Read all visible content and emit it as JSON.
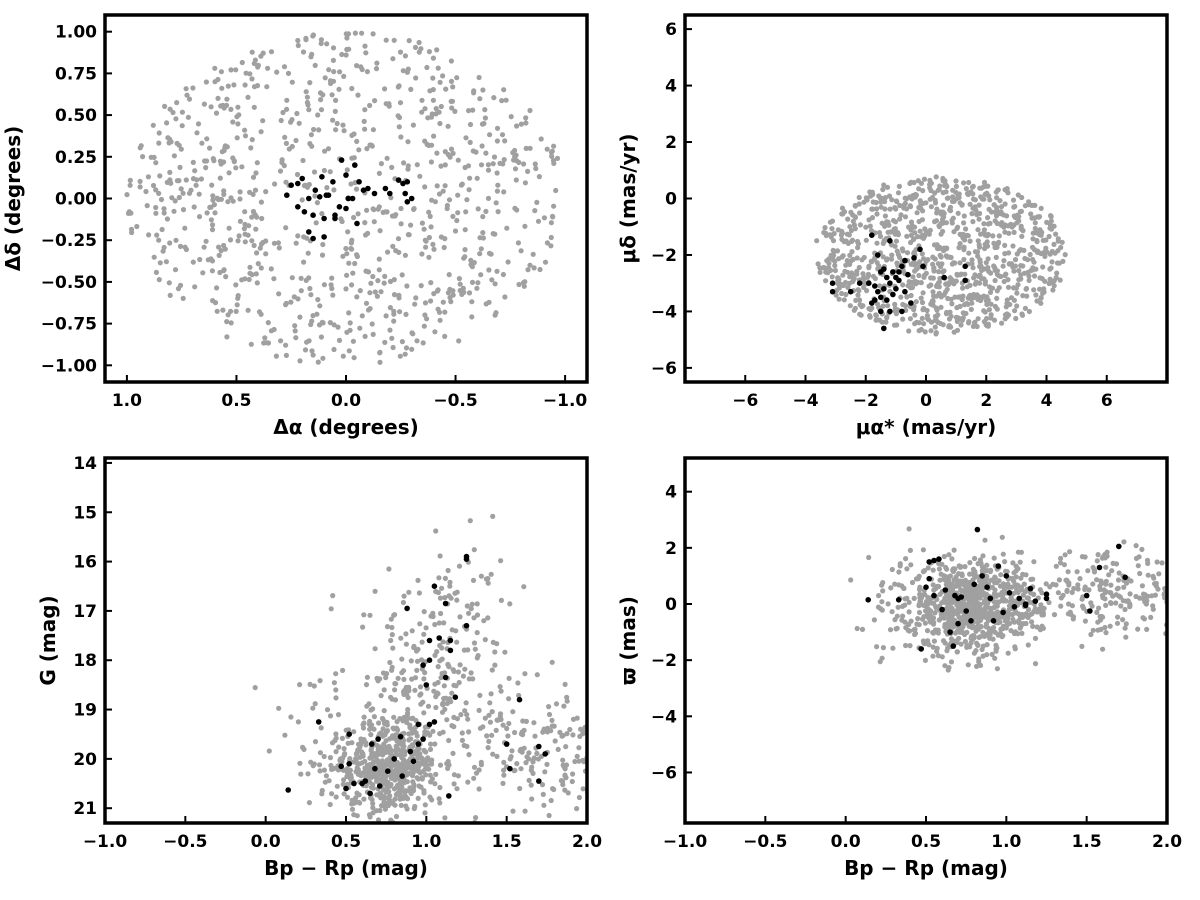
{
  "chart_data": [
    {
      "type": "scatter",
      "id": "sky",
      "xlabel": "Δα (degrees)",
      "ylabel": "Δδ (degrees)",
      "xlim": [
        1.1,
        -1.1
      ],
      "ylim": [
        -1.1,
        1.1
      ],
      "x_reversed": true,
      "xticks": [
        1.0,
        0.5,
        0.0,
        -0.5,
        -1.0
      ],
      "xtick_labels": [
        "1.0",
        "0.5",
        "0.0",
        "−0.5",
        "−1.0"
      ],
      "yticks": [
        -1.0,
        -0.75,
        -0.5,
        -0.25,
        0.0,
        0.25,
        0.5,
        0.75,
        1.0
      ],
      "ytick_labels": [
        "−1.00",
        "−0.75",
        "−0.50",
        "−0.25",
        "0.00",
        "0.25",
        "0.50",
        "0.75",
        "1.00"
      ],
      "grid": false,
      "series": [
        {
          "color": "#a0a0a0",
          "distribution": {
            "kind": "disk",
            "center": [
              0,
              0
            ],
            "radius": [
              1.0,
              1.0
            ],
            "n": 900
          }
        },
        {
          "color": "#000000",
          "points": [
            [
              0.02,
              0.23
            ],
            [
              -0.04,
              0.2
            ],
            [
              0.0,
              0.14
            ],
            [
              0.11,
              0.13
            ],
            [
              0.06,
              0.1
            ],
            [
              -0.06,
              0.1
            ],
            [
              -0.08,
              0.05
            ],
            [
              0.14,
              0.05
            ],
            [
              0.2,
              0.12
            ],
            [
              0.22,
              0.09
            ],
            [
              0.25,
              0.08
            ],
            [
              0.27,
              0.02
            ],
            [
              0.22,
              -0.05
            ],
            [
              0.19,
              -0.08
            ],
            [
              0.15,
              -0.1
            ],
            [
              0.1,
              -0.12
            ],
            [
              0.05,
              -0.1
            ],
            [
              0.0,
              -0.06
            ],
            [
              -0.03,
              0.0
            ],
            [
              0.17,
              0.0
            ],
            [
              0.12,
              0.01
            ],
            [
              0.09,
              0.02
            ],
            [
              0.17,
              -0.2
            ],
            [
              0.15,
              -0.24
            ],
            [
              0.1,
              -0.23
            ],
            [
              0.05,
              -0.12
            ],
            [
              0.03,
              -0.05
            ],
            [
              -0.05,
              -0.15
            ],
            [
              -0.1,
              0.06
            ],
            [
              -0.13,
              0.03
            ],
            [
              -0.2,
              0.03
            ],
            [
              -0.24,
              0.11
            ],
            [
              -0.26,
              0.09
            ],
            [
              -0.27,
              0.03
            ],
            [
              -0.28,
              -0.02
            ],
            [
              -0.3,
              0.0
            ],
            [
              -0.18,
              0.06
            ],
            [
              -0.28,
              0.1
            ],
            [
              0.08,
              0.02
            ],
            [
              -0.01,
              0.0
            ]
          ]
        }
      ]
    },
    {
      "type": "scatter",
      "id": "pm",
      "xlabel": "μα* (mas/yr)",
      "ylabel": "μδ (mas/yr)",
      "xlim": [
        -8,
        8
      ],
      "ylim": [
        -6.5,
        6.5
      ],
      "xticks": [
        -6,
        -4,
        -2,
        0,
        2,
        4,
        6
      ],
      "xtick_labels": [
        "−6",
        "−4",
        "−2",
        "0",
        "2",
        "4",
        "6"
      ],
      "yticks": [
        -6,
        -4,
        -2,
        0,
        2,
        4,
        6
      ],
      "ytick_labels": [
        "−6",
        "−4",
        "−2",
        "0",
        "2",
        "4",
        "6"
      ],
      "grid": false,
      "series": [
        {
          "color": "#a0a0a0",
          "distribution": {
            "kind": "disk",
            "center": [
              0.5,
              -2.0
            ],
            "radius": [
              4.2,
              2.8
            ],
            "n": 1000
          }
        },
        {
          "color": "#000000",
          "points": [
            [
              -1.5,
              -3.5
            ],
            [
              -1.4,
              -3.2
            ],
            [
              -1.6,
              -3.3
            ],
            [
              -1.3,
              -3.6
            ],
            [
              -1.2,
              -3.0
            ],
            [
              -1.0,
              -2.8
            ],
            [
              -0.9,
              -2.6
            ],
            [
              -0.8,
              -2.4
            ],
            [
              -0.7,
              -2.2
            ],
            [
              -0.9,
              -2.9
            ],
            [
              -1.1,
              -3.4
            ],
            [
              -1.7,
              -3.1
            ],
            [
              -1.5,
              -2.6
            ],
            [
              -1.6,
              -2.0
            ],
            [
              -1.8,
              -1.3
            ],
            [
              -1.2,
              -1.5
            ],
            [
              -1.4,
              -2.5
            ],
            [
              -0.6,
              -2.7
            ],
            [
              -0.5,
              -3.7
            ],
            [
              -0.8,
              -4.0
            ],
            [
              -1.4,
              -4.6
            ],
            [
              -1.5,
              -4.0
            ],
            [
              -1.2,
              -4.0
            ],
            [
              -2.2,
              -3.0
            ],
            [
              -2.5,
              -3.3
            ],
            [
              -3.1,
              -3.0
            ],
            [
              -3.1,
              -3.3
            ],
            [
              -0.2,
              -1.8
            ],
            [
              -0.1,
              -2.4
            ],
            [
              0.6,
              -2.8
            ],
            [
              1.3,
              -2.4
            ],
            [
              1.3,
              -2.9
            ],
            [
              -1.0,
              -3.2
            ],
            [
              -1.8,
              -3.7
            ],
            [
              -1.3,
              -2.8
            ],
            [
              -1.7,
              -3.6
            ],
            [
              -1.1,
              -2.6
            ],
            [
              -0.7,
              -3.3
            ],
            [
              -1.9,
              -3.0
            ],
            [
              -0.4,
              -2.1
            ]
          ]
        }
      ]
    },
    {
      "type": "scatter",
      "id": "cmd",
      "xlabel": "Bp − Rp (mag)",
      "ylabel": "G (mag)",
      "xlim": [
        -1.0,
        2.0
      ],
      "ylim": [
        21.3,
        13.9
      ],
      "y_reversed": true,
      "xticks": [
        -1.0,
        -0.5,
        0.0,
        0.5,
        1.0,
        1.5,
        2.0
      ],
      "xtick_labels": [
        "−1.0",
        "−0.5",
        "0.0",
        "0.5",
        "1.0",
        "1.5",
        "2.0"
      ],
      "yticks": [
        14,
        15,
        16,
        17,
        18,
        19,
        20,
        21
      ],
      "ytick_labels": [
        "14",
        "15",
        "16",
        "17",
        "18",
        "19",
        "20",
        "21"
      ],
      "grid": false,
      "series": [
        {
          "color": "#a0a0a0",
          "distribution": {
            "kind": "clumps",
            "clumps": [
              {
                "center": [
                  0.75,
                  20.2
                ],
                "spread": [
                  0.17,
                  0.45
                ],
                "n": 550
              },
              {
                "center": [
                  1.0,
                  18.8
                ],
                "spread": [
                  0.2,
                  1.0
                ],
                "n": 200
              },
              {
                "center": [
                  1.15,
                  17.3
                ],
                "spread": [
                  0.18,
                  0.9
                ],
                "n": 90
              },
              {
                "center": [
                  1.75,
                  19.8
                ],
                "spread": [
                  0.22,
                  0.75
                ],
                "n": 170
              },
              {
                "center": [
                  0.4,
                  19.3
                ],
                "spread": [
                  0.2,
                  0.9
                ],
                "n": 40
              }
            ]
          }
        },
        {
          "color": "#000000",
          "points": [
            [
              0.14,
              20.63
            ],
            [
              0.33,
              19.25
            ],
            [
              0.47,
              20.15
            ],
            [
              0.52,
              20.1
            ],
            [
              0.5,
              20.6
            ],
            [
              0.55,
              20.5
            ],
            [
              0.52,
              19.5
            ],
            [
              0.6,
              20.5
            ],
            [
              0.62,
              20.45
            ],
            [
              0.65,
              20.7
            ],
            [
              0.68,
              20.2
            ],
            [
              0.71,
              20.55
            ],
            [
              0.76,
              20.25
            ],
            [
              0.85,
              20.35
            ],
            [
              0.92,
              20.05
            ],
            [
              0.95,
              19.7
            ],
            [
              0.98,
              19.6
            ],
            [
              0.7,
              19.6
            ],
            [
              0.66,
              19.7
            ],
            [
              0.8,
              20.0
            ],
            [
              1.02,
              19.3
            ],
            [
              1.05,
              19.25
            ],
            [
              0.95,
              19.3
            ],
            [
              0.9,
              19.85
            ],
            [
              1.0,
              18.5
            ],
            [
              1.02,
              18.0
            ],
            [
              1.08,
              17.55
            ],
            [
              1.12,
              18.35
            ],
            [
              1.15,
              17.8
            ],
            [
              1.15,
              17.6
            ],
            [
              1.12,
              16.85
            ],
            [
              1.05,
              16.5
            ],
            [
              0.88,
              16.95
            ],
            [
              1.25,
              17.3
            ],
            [
              1.25,
              15.9
            ],
            [
              1.25,
              15.95
            ],
            [
              1.52,
              20.2
            ],
            [
              1.58,
              18.8
            ],
            [
              1.7,
              20.45
            ],
            [
              1.74,
              19.9
            ],
            [
              1.7,
              19.75
            ],
            [
              1.5,
              19.7
            ],
            [
              1.14,
              20.75
            ],
            [
              1.02,
              17.6
            ],
            [
              0.98,
              18.1
            ],
            [
              1.18,
              18.75
            ],
            [
              0.84,
              19.55
            ]
          ]
        }
      ]
    },
    {
      "type": "scatter",
      "id": "parallax",
      "xlabel": "Bp − Rp (mag)",
      "ylabel": "ϖ (mas)",
      "xlim": [
        -1.0,
        2.0
      ],
      "ylim": [
        -7.8,
        5.2
      ],
      "xticks": [
        -1.0,
        -0.5,
        0.0,
        0.5,
        1.0,
        1.5,
        2.0
      ],
      "xtick_labels": [
        "−1.0",
        "−0.5",
        "0.0",
        "0.5",
        "1.0",
        "1.5",
        "2.0"
      ],
      "yticks": [
        -6,
        -4,
        -2,
        0,
        2,
        4
      ],
      "ytick_labels": [
        "−6",
        "−4",
        "−2",
        "0",
        "2",
        "4"
      ],
      "grid": false,
      "series": [
        {
          "color": "#a0a0a0",
          "distribution": {
            "kind": "clumps",
            "clumps": [
              {
                "center": [
                  0.75,
                  -0.1
                ],
                "spread": [
                  0.17,
                  0.85
                ],
                "n": 650
              },
              {
                "center": [
                  1.05,
                  0.05
                ],
                "spread": [
                  0.15,
                  0.7
                ],
                "n": 150
              },
              {
                "center": [
                  1.65,
                  0.35
                ],
                "spread": [
                  0.22,
                  0.7
                ],
                "n": 180
              },
              {
                "center": [
                  0.35,
                  0.0
                ],
                "spread": [
                  0.12,
                  0.9
                ],
                "n": 60
              }
            ]
          }
        },
        {
          "color": "#000000",
          "points": [
            [
              0.14,
              0.15
            ],
            [
              0.33,
              0.15
            ],
            [
              0.47,
              -1.6
            ],
            [
              0.5,
              0.6
            ],
            [
              0.52,
              1.5
            ],
            [
              0.52,
              0.9
            ],
            [
              0.55,
              1.55
            ],
            [
              0.55,
              0.3
            ],
            [
              0.6,
              -0.2
            ],
            [
              0.62,
              0.5
            ],
            [
              0.65,
              -1.0
            ],
            [
              0.67,
              -1.5
            ],
            [
              0.68,
              0.3
            ],
            [
              0.7,
              -0.7
            ],
            [
              0.72,
              0.25
            ],
            [
              0.75,
              -0.25
            ],
            [
              0.8,
              0.7
            ],
            [
              0.82,
              2.65
            ],
            [
              0.85,
              1.0
            ],
            [
              0.88,
              0.6
            ],
            [
              0.9,
              0.2
            ],
            [
              0.92,
              -0.6
            ],
            [
              0.95,
              1.35
            ],
            [
              0.98,
              -0.3
            ],
            [
              1.0,
              1.0
            ],
            [
              1.02,
              0.4
            ],
            [
              1.05,
              -0.1
            ],
            [
              1.08,
              0.2
            ],
            [
              1.12,
              -0.05
            ],
            [
              1.15,
              0.55
            ],
            [
              1.18,
              0.1
            ],
            [
              1.25,
              0.2
            ],
            [
              1.25,
              0.35
            ],
            [
              1.5,
              0.3
            ],
            [
              1.52,
              -0.25
            ],
            [
              1.58,
              1.3
            ],
            [
              1.7,
              2.05
            ],
            [
              1.74,
              0.95
            ],
            [
              0.58,
              1.6
            ],
            [
              0.7,
              0.2
            ],
            [
              0.78,
              -0.6
            ],
            [
              1.12,
              0.0
            ]
          ]
        }
      ]
    }
  ]
}
